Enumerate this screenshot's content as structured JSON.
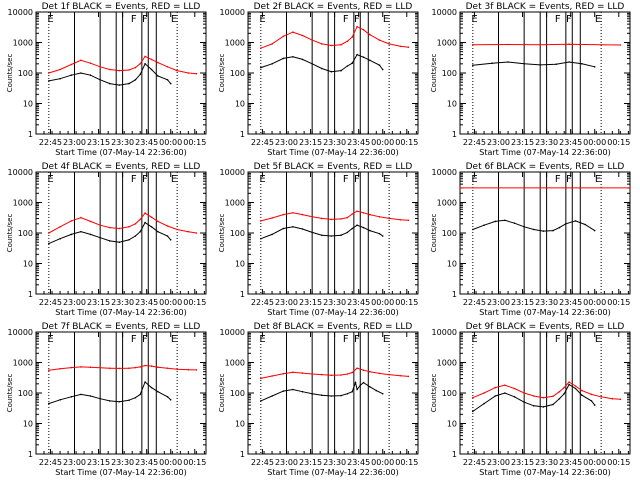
{
  "colors": {
    "events": "#000000",
    "lld": "#ff0000",
    "axes": "#000000",
    "background": "#ffffff"
  },
  "chart_data": {
    "type": "line",
    "scale": "log-y",
    "ylabel": "Counts/sec",
    "xlabel": "Start Time (07-May-14 22:36:00)",
    "ylim": [
      1,
      10000
    ],
    "y_tick_labels": [
      "1",
      "10",
      "100",
      "1000",
      "10000"
    ],
    "x_tick_labels": [
      "22:45",
      "23:00",
      "23:15",
      "23:30",
      "23:45",
      "00:00",
      "00:15"
    ],
    "x_tick_minutes": [
      9,
      24,
      39,
      54,
      69,
      84,
      99
    ],
    "xlim_minutes": [
      0,
      106
    ],
    "dotted_markers_minutes": [
      8,
      88
    ],
    "solid_markers_minutes": [
      24,
      40,
      50,
      54,
      66,
      70,
      75
    ],
    "flag_labels": [
      "E",
      "F",
      "F",
      "E"
    ],
    "flag_minutes": [
      9,
      61,
      68,
      86
    ],
    "panels": [
      {
        "title": "Det 1f BLACK = Events, RED = LLD",
        "series": [
          {
            "name": "Events",
            "color": "#000000",
            "x": [
              8,
              15,
              22,
              28,
              34,
              40,
              46,
              52,
              58,
              62,
              65,
              68,
              72,
              76,
              82,
              84
            ],
            "values": [
              55,
              65,
              85,
              100,
              85,
              60,
              45,
              40,
              45,
              60,
              90,
              200,
              130,
              80,
              60,
              45
            ]
          },
          {
            "name": "LLD",
            "color": "#ff0000",
            "x": [
              8,
              15,
              22,
              28,
              34,
              40,
              46,
              52,
              58,
              62,
              65,
              68,
              72,
              76,
              82,
              88,
              95,
              100
            ],
            "values": [
              100,
              130,
              190,
              260,
              210,
              160,
              130,
              120,
              125,
              150,
              200,
              350,
              280,
              220,
              160,
              120,
              100,
              95
            ]
          }
        ]
      },
      {
        "title": "Det 2f BLACK = Events, RED = LLD",
        "series": [
          {
            "name": "Events",
            "color": "#000000",
            "x": [
              8,
              15,
              22,
              28,
              34,
              40,
              46,
              52,
              58,
              62,
              65,
              68,
              72,
              76,
              82,
              84
            ],
            "values": [
              150,
              200,
              300,
              340,
              280,
              200,
              140,
              110,
              120,
              170,
              210,
              400,
              330,
              260,
              180,
              130
            ]
          },
          {
            "name": "LLD",
            "color": "#ff0000",
            "x": [
              8,
              15,
              22,
              28,
              34,
              40,
              46,
              52,
              58,
              62,
              65,
              68,
              72,
              76,
              82,
              88,
              95,
              100
            ],
            "values": [
              650,
              900,
              1600,
              2200,
              1700,
              1200,
              900,
              800,
              850,
              1100,
              1500,
              3300,
              2600,
              1800,
              1200,
              900,
              750,
              700
            ]
          }
        ]
      },
      {
        "title": "Det 3f BLACK = Events, RED = LLD",
        "series": [
          {
            "name": "Events",
            "color": "#000000",
            "x": [
              8,
              20,
              30,
              40,
              50,
              60,
              68,
              76,
              84
            ],
            "values": [
              180,
              210,
              230,
              200,
              185,
              195,
              230,
              200,
              160
            ]
          },
          {
            "name": "LLD",
            "color": "#ff0000",
            "x": [
              8,
              30,
              50,
              68,
              88,
              100
            ],
            "values": [
              850,
              860,
              840,
              880,
              840,
              830
            ]
          }
        ]
      },
      {
        "title": "Det 4f BLACK = Events, RED = LLD",
        "series": [
          {
            "name": "Events",
            "color": "#000000",
            "x": [
              8,
              15,
              22,
              28,
              34,
              40,
              46,
              52,
              58,
              62,
              65,
              68,
              72,
              76,
              82,
              84
            ],
            "values": [
              45,
              65,
              90,
              110,
              90,
              70,
              55,
              50,
              60,
              80,
              110,
              220,
              160,
              110,
              80,
              60
            ]
          },
          {
            "name": "LLD",
            "color": "#ff0000",
            "x": [
              8,
              15,
              22,
              28,
              34,
              40,
              46,
              52,
              58,
              62,
              65,
              68,
              72,
              76,
              82,
              88,
              95,
              100
            ],
            "values": [
              100,
              160,
              250,
              320,
              240,
              180,
              150,
              140,
              160,
              200,
              280,
              450,
              330,
              240,
              170,
              130,
              110,
              100
            ]
          }
        ]
      },
      {
        "title": "Det 5f BLACK = Events, RED = LLD",
        "series": [
          {
            "name": "Events",
            "color": "#000000",
            "x": [
              8,
              15,
              22,
              28,
              34,
              40,
              46,
              52,
              58,
              62,
              65,
              68,
              72,
              76,
              82,
              84
            ],
            "values": [
              65,
              90,
              140,
              160,
              135,
              105,
              85,
              80,
              85,
              105,
              140,
              180,
              150,
              120,
              95,
              80
            ]
          },
          {
            "name": "LLD",
            "color": "#ff0000",
            "x": [
              8,
              15,
              22,
              28,
              34,
              40,
              46,
              52,
              58,
              62,
              65,
              68,
              72,
              76,
              82,
              88,
              95,
              100
            ],
            "values": [
              250,
              310,
              400,
              460,
              400,
              340,
              300,
              280,
              290,
              320,
              420,
              520,
              460,
              400,
              340,
              300,
              270,
              260
            ]
          }
        ]
      },
      {
        "title": "Det 6f BLACK = Events, RED = LLD",
        "series": [
          {
            "name": "Events",
            "color": "#000000",
            "x": [
              8,
              15,
              22,
              28,
              34,
              40,
              46,
              52,
              58,
              62,
              66,
              72,
              78,
              84
            ],
            "values": [
              130,
              180,
              240,
              260,
              210,
              160,
              130,
              115,
              120,
              150,
              200,
              250,
              190,
              120
            ]
          },
          {
            "name": "LLD",
            "color": "#ff0000",
            "x": [
              0,
              106
            ],
            "values": [
              3000,
              3000
            ]
          }
        ]
      },
      {
        "title": "Det 7f BLACK = Events, RED = LLD",
        "series": [
          {
            "name": "Events",
            "color": "#000000",
            "x": [
              8,
              15,
              22,
              28,
              34,
              40,
              46,
              52,
              58,
              62,
              65,
              68,
              72,
              76,
              82,
              84
            ],
            "values": [
              45,
              60,
              75,
              90,
              80,
              65,
              55,
              52,
              58,
              70,
              90,
              230,
              150,
              110,
              75,
              60
            ]
          },
          {
            "name": "LLD",
            "color": "#ff0000",
            "x": [
              8,
              15,
              22,
              28,
              34,
              40,
              46,
              52,
              58,
              62,
              65,
              68,
              72,
              76,
              82,
              88,
              95,
              100
            ],
            "values": [
              560,
              620,
              680,
              720,
              700,
              670,
              650,
              640,
              650,
              680,
              720,
              800,
              760,
              700,
              650,
              600,
              580,
              570
            ]
          }
        ]
      },
      {
        "title": "Det 8f BLACK = Events, RED = LLD",
        "series": [
          {
            "name": "Events",
            "color": "#000000",
            "x": [
              8,
              15,
              22,
              28,
              34,
              40,
              46,
              52,
              58,
              62,
              65,
              67,
              68,
              70,
              72,
              76,
              80,
              84
            ],
            "values": [
              55,
              80,
              115,
              130,
              110,
              95,
              85,
              80,
              82,
              95,
              110,
              220,
              130,
              180,
              220,
              160,
              120,
              95
            ]
          },
          {
            "name": "LLD",
            "color": "#ff0000",
            "x": [
              8,
              15,
              22,
              28,
              34,
              40,
              46,
              52,
              58,
              62,
              65,
              68,
              72,
              76,
              82,
              88,
              95,
              100
            ],
            "values": [
              300,
              360,
              430,
              480,
              450,
              420,
              400,
              380,
              390,
              420,
              470,
              650,
              560,
              500,
              440,
              400,
              370,
              350
            ]
          }
        ]
      },
      {
        "title": "Det 9f BLACK = Events, RED = LLD",
        "series": [
          {
            "name": "Events",
            "color": "#000000",
            "x": [
              8,
              15,
              22,
              28,
              34,
              40,
              46,
              52,
              58,
              62,
              65,
              68,
              72,
              76,
              82,
              84
            ],
            "values": [
              25,
              45,
              80,
              100,
              75,
              50,
              38,
              35,
              42,
              65,
              95,
              190,
              140,
              85,
              55,
              40
            ]
          },
          {
            "name": "LLD",
            "color": "#ff0000",
            "x": [
              8,
              15,
              22,
              28,
              34,
              40,
              46,
              52,
              58,
              62,
              65,
              68,
              72,
              76,
              82,
              88,
              95,
              100
            ],
            "values": [
              70,
              100,
              150,
              180,
              140,
              100,
              80,
              70,
              78,
              110,
              150,
              230,
              170,
              120,
              90,
              75,
              65,
              62
            ]
          }
        ]
      }
    ]
  }
}
